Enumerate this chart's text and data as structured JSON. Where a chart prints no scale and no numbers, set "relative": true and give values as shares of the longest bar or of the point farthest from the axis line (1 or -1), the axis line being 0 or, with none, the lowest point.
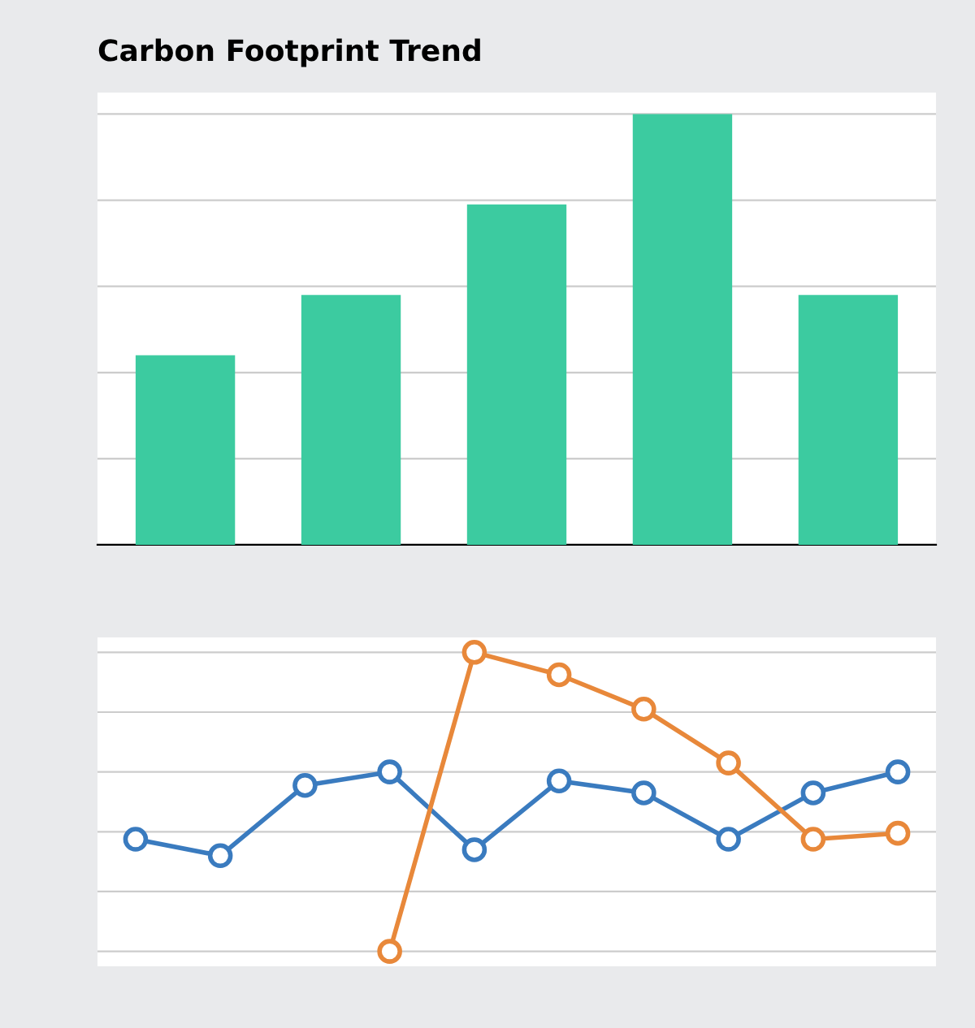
{
  "chart_data": [
    {
      "type": "bar",
      "title": "Carbon Footprint Trend",
      "relative": true,
      "grid": "y",
      "categories": [
        null,
        null,
        null,
        null,
        null
      ],
      "series": [
        {
          "color": "#3ccba0",
          "values": [
            0.44,
            0.58,
            0.79,
            1,
            0.58
          ]
        }
      ]
    },
    {
      "type": "line",
      "relative": true,
      "grid": "y",
      "marker": "circle",
      "line_style": "solid",
      "categories": [
        null,
        null,
        null,
        null,
        null,
        null,
        null,
        null,
        null,
        null
      ],
      "series": [
        {
          "color": "#3a7bbf",
          "values": [
            0.375,
            0.32,
            0.555,
            0.6,
            0.34,
            0.57,
            0.53,
            0.375,
            0.53,
            0.6
          ]
        },
        {
          "color": "#e8883a",
          "values": [
            null,
            null,
            null,
            0,
            1,
            0.925,
            0.81,
            0.63,
            0.375,
            0.395
          ]
        }
      ]
    }
  ]
}
